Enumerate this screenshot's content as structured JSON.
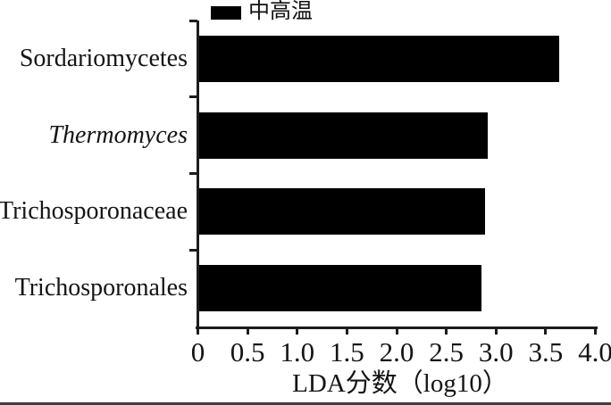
{
  "figure": {
    "legend": {
      "label": "中高温",
      "swatch_color": "#000000"
    }
  },
  "chart_data": {
    "type": "bar",
    "orientation": "horizontal",
    "title": "",
    "categories": [
      "Sordariomycetes",
      "Thermomyces",
      "Trichosporonaceae",
      "Trichosporonales"
    ],
    "italic_categories": [
      "Thermomyces"
    ],
    "series": [
      {
        "name": "中高温",
        "values": [
          3.62,
          2.9,
          2.88,
          2.84
        ]
      }
    ],
    "xlabel": "LDA分数（log10）",
    "ylabel": "",
    "xlim": [
      0,
      4.0
    ],
    "xticks": {
      "values": [
        0,
        0.5,
        1.0,
        1.5,
        2.0,
        2.5,
        3.0,
        3.5,
        4.0
      ],
      "labels": [
        "0",
        "0.5",
        "1.0",
        "1.5",
        "2.0",
        "2.5",
        "3.0",
        "3.5",
        "4.0"
      ]
    },
    "grid": false,
    "legend_position": "top",
    "bar_color": "#000000",
    "axis_color": "#1c1c1c"
  }
}
